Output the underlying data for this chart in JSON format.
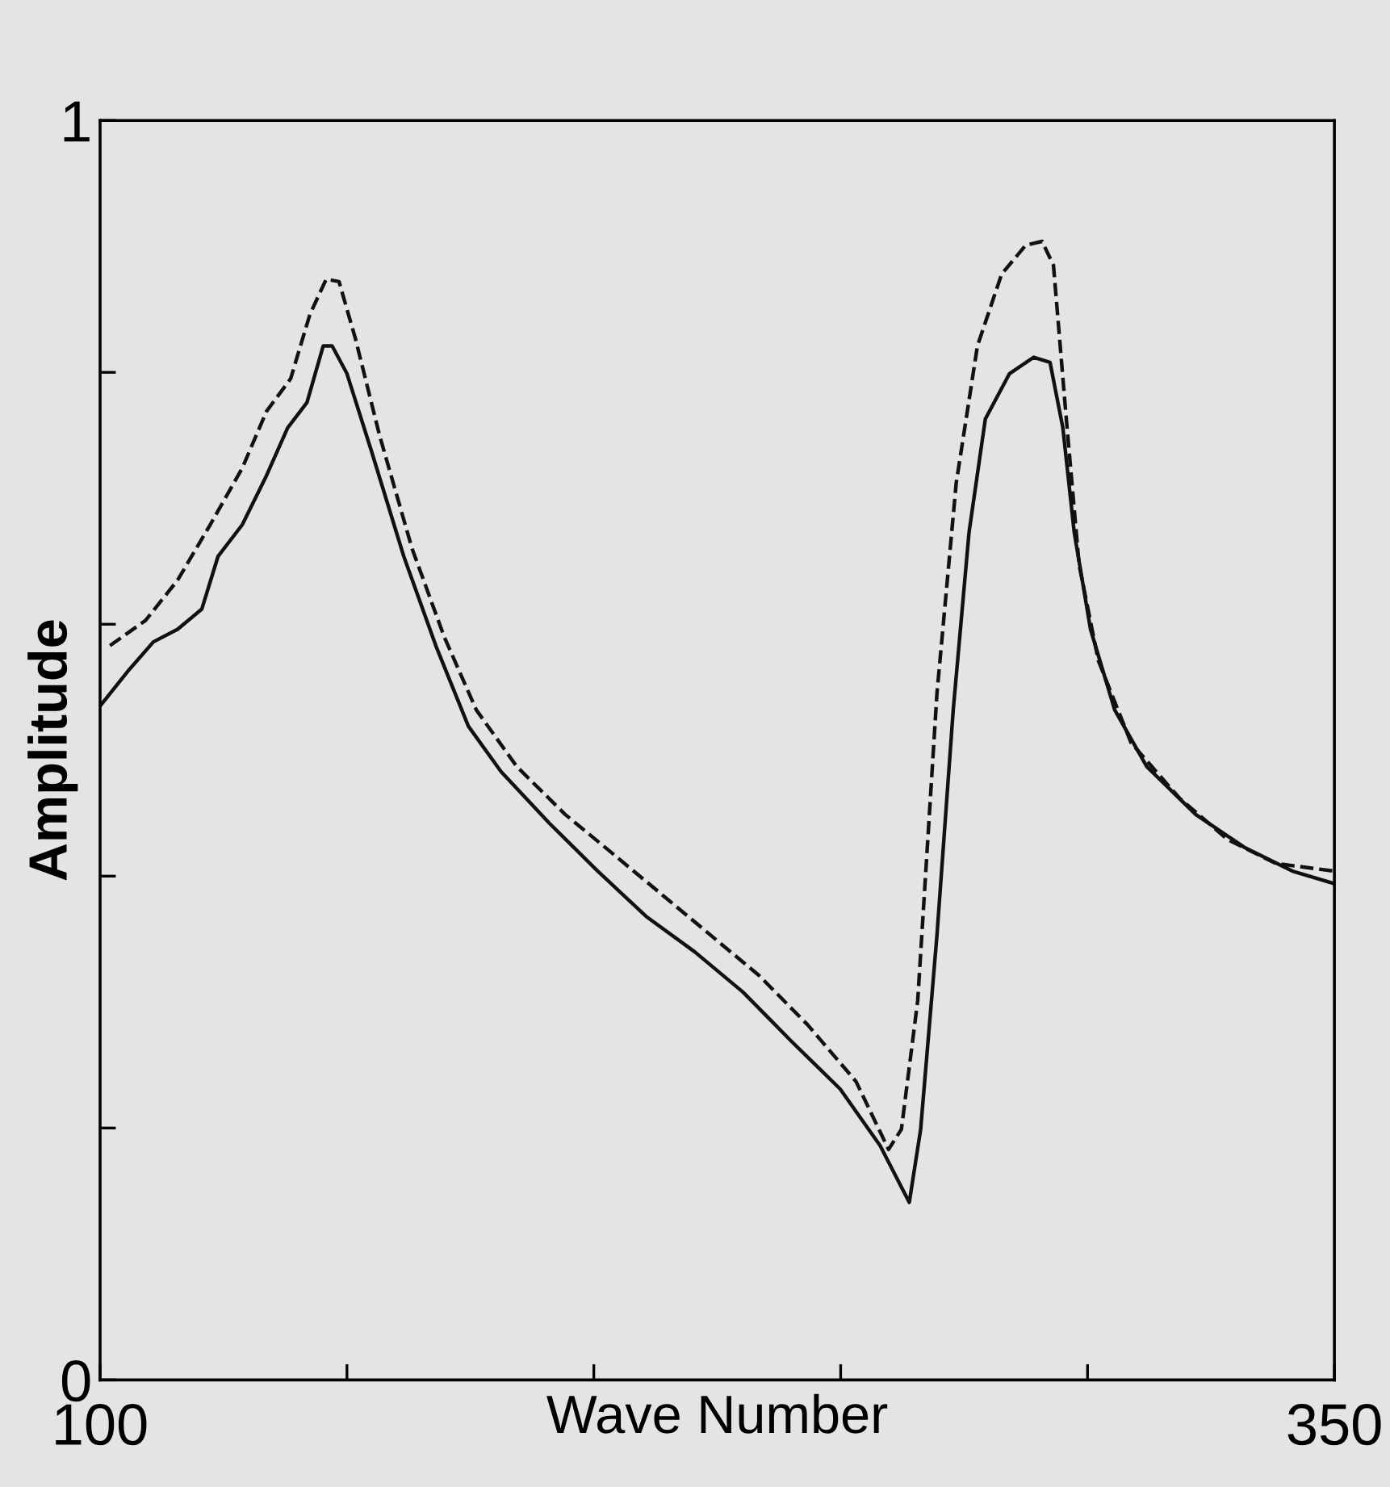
{
  "chart_data": {
    "type": "line",
    "xlabel": "Wave Number",
    "ylabel": "Amplitude",
    "xlim": [
      100,
      350
    ],
    "ylim": [
      0,
      1
    ],
    "xticks": [
      100,
      {
        "value": 150,
        "label": null
      },
      {
        "value": 200,
        "label": null
      },
      {
        "value": 250,
        "label": null
      },
      {
        "value": 300,
        "label": null
      },
      350
    ],
    "yticks": [
      0,
      {
        "value": 0.2,
        "label": null
      },
      {
        "value": 0.4,
        "label": null
      },
      {
        "value": 0.6,
        "label": null
      },
      {
        "value": 0.8,
        "label": null
      },
      1
    ],
    "grid": false,
    "marker": "none",
    "series": [
      {
        "color": "#111111",
        "line_style": "solid",
        "x": [
          100,
          105.9,
          110.8,
          115.7,
          120.6,
          123.9,
          128.8,
          133.7,
          138,
          141.9,
          145.2,
          147,
          150,
          155,
          161.5,
          168,
          174.6,
          181.2,
          191,
          200.8,
          210.6,
          220.4,
          230.2,
          240,
          249.9,
          258,
          263.9,
          266.2,
          269.5,
          272.8,
          276,
          279.3,
          284.2,
          289.1,
          292.4,
          295,
          297.3,
          300.6,
          305.5,
          312,
          321.9,
          331.7,
          341.5,
          350
        ],
        "values": [
          0.535,
          0.564,
          0.586,
          0.596,
          0.612,
          0.654,
          0.679,
          0.718,
          0.756,
          0.776,
          0.821,
          0.821,
          0.799,
          0.737,
          0.654,
          0.583,
          0.519,
          0.483,
          0.442,
          0.404,
          0.368,
          0.34,
          0.308,
          0.269,
          0.231,
          0.186,
          0.141,
          0.199,
          0.353,
          0.532,
          0.673,
          0.763,
          0.799,
          0.812,
          0.808,
          0.756,
          0.673,
          0.596,
          0.532,
          0.487,
          0.449,
          0.423,
          0.404,
          0.394
        ]
      },
      {
        "color": "#111111",
        "line_style": "dashed",
        "x": [
          102,
          109.2,
          115.7,
          122.3,
          128.8,
          133.7,
          138.6,
          142.5,
          145.8,
          148.4,
          151.7,
          156.6,
          163.2,
          169.7,
          176.2,
          184.4,
          194.2,
          204.1,
          213.9,
          223.7,
          233.5,
          243.3,
          253.1,
          259.7,
          262.3,
          265.6,
          269.5,
          273.4,
          277.7,
          282.6,
          287.5,
          290.8,
          293.1,
          295.7,
          298.3,
          302.2,
          308.8,
          318.6,
          328.4,
          338.2,
          350
        ],
        "values": [
          0.583,
          0.603,
          0.635,
          0.679,
          0.724,
          0.769,
          0.795,
          0.846,
          0.874,
          0.872,
          0.827,
          0.75,
          0.66,
          0.59,
          0.532,
          0.487,
          0.449,
          0.417,
          0.385,
          0.353,
          0.321,
          0.282,
          0.237,
          0.183,
          0.199,
          0.301,
          0.545,
          0.712,
          0.821,
          0.878,
          0.901,
          0.904,
          0.885,
          0.763,
          0.647,
          0.571,
          0.506,
          0.462,
          0.429,
          0.41,
          0.404
        ]
      }
    ]
  }
}
